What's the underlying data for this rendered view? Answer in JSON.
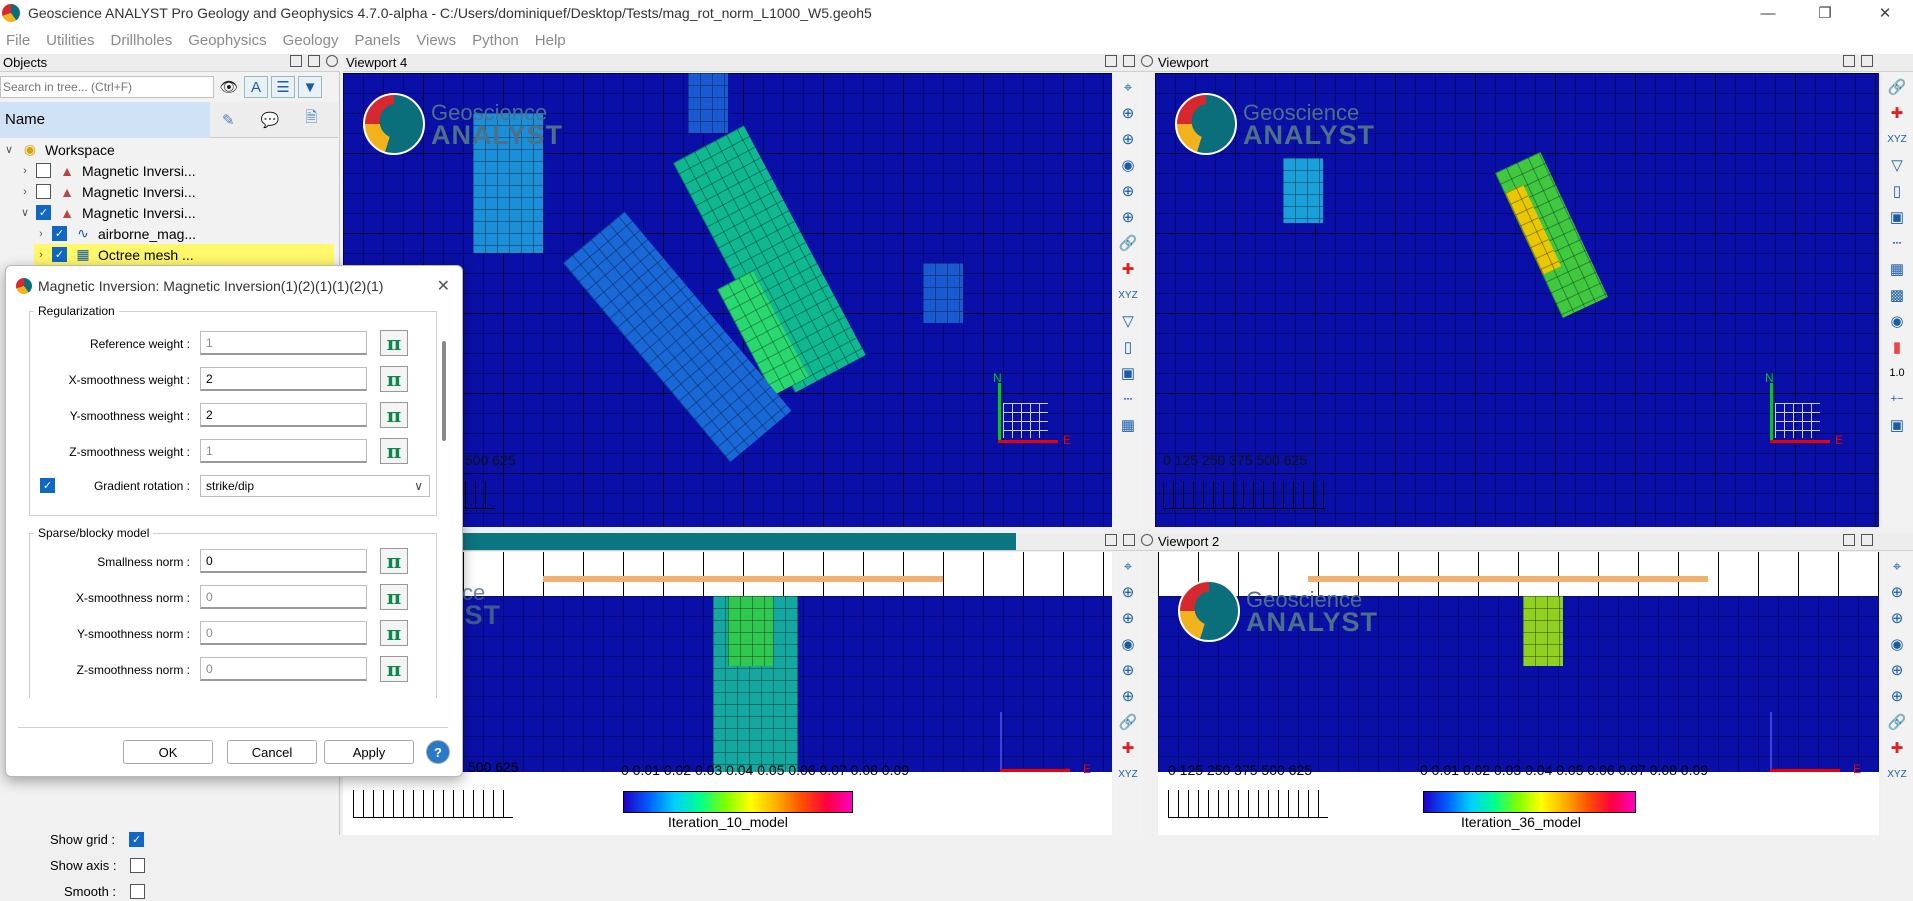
{
  "window": {
    "title": "Geoscience ANALYST Pro Geology and Geophysics 4.7.0-alpha - C:/Users/dominiquef/Desktop/Tests/mag_rot_norm_L1000_W5.geoh5"
  },
  "menu": [
    "File",
    "Utilities",
    "Drillholes",
    "Geophysics",
    "Geology",
    "Panels",
    "Views",
    "Python",
    "Help"
  ],
  "objects_panel": {
    "title": "Objects",
    "search_placeholder": "Search in tree... (Ctrl+F)",
    "column_name": "Name",
    "tree": [
      {
        "label": "Workspace",
        "level": 0,
        "checked": null,
        "expanded": true
      },
      {
        "label": "Magnetic Inversi...",
        "level": 1,
        "checked": false,
        "expanded": false
      },
      {
        "label": "Magnetic Inversi...",
        "level": 1,
        "checked": false,
        "expanded": false
      },
      {
        "label": "Magnetic Inversi...",
        "level": 1,
        "checked": true,
        "expanded": true
      },
      {
        "label": "airborne_mag...",
        "level": 2,
        "checked": true,
        "expanded": false
      },
      {
        "label": "Octree mesh ...",
        "level": 2,
        "checked": true,
        "expanded": false,
        "selected": true
      }
    ],
    "options": [
      {
        "label": "Show grid :",
        "checked": true
      },
      {
        "label": "Show axis :",
        "checked": false
      },
      {
        "label": "Smooth :",
        "checked": false
      }
    ]
  },
  "viewports": {
    "vp4": {
      "title": "Viewport 4",
      "scale_text": "500 625"
    },
    "vp1": {
      "title": "Viewport",
      "scale_text": "0   125 250 375 500 625"
    },
    "vp3": {
      "scale_text": "500 625",
      "colorbar_ticks": "0 0.01 0.02 0.03 0.04 0.05 0.06 0.07 0.08 0.09",
      "colorbar_label": "Iteration_10_model"
    },
    "vp2": {
      "title": "Viewport 2",
      "scale_text": "0    125  250  375  500  625",
      "colorbar_ticks": "0 0.01 0.02 0.03 0.04 0.05 0.06 0.07 0.08 0.09",
      "colorbar_label": "Iteration_36_model"
    },
    "logo_line1": "Geoscience",
    "logo_line2": "ANALYST",
    "compass_north": "N",
    "compass_east": "E",
    "zoom_value": "1.0"
  },
  "dialog": {
    "title": "Magnetic Inversion: Magnetic Inversion(1)(2)(1)(1)(2)(1)",
    "regularization": {
      "title": "Regularization",
      "fields": [
        {
          "label": "Reference weight :",
          "value": "1",
          "disabled": true
        },
        {
          "label": "X-smoothness weight :",
          "value": "2",
          "disabled": false
        },
        {
          "label": "Y-smoothness weight :",
          "value": "2",
          "disabled": false
        },
        {
          "label": "Z-smoothness weight :",
          "value": "1",
          "disabled": true
        }
      ],
      "gradient_rotation": {
        "label": "Gradient rotation :",
        "value": "strike/dip",
        "checked": true
      }
    },
    "sparse": {
      "title": "Sparse/blocky model",
      "fields": [
        {
          "label": "Smallness norm :",
          "value": "0",
          "disabled": false
        },
        {
          "label": "X-smoothness norm :",
          "value": "0",
          "disabled": true
        },
        {
          "label": "Y-smoothness norm :",
          "value": "0",
          "disabled": true
        },
        {
          "label": "Z-smoothness norm :",
          "value": "0",
          "disabled": true
        }
      ]
    },
    "buttons": {
      "ok": "OK",
      "cancel": "Cancel",
      "apply": "Apply",
      "help": "?"
    },
    "pi_symbol": "π"
  }
}
